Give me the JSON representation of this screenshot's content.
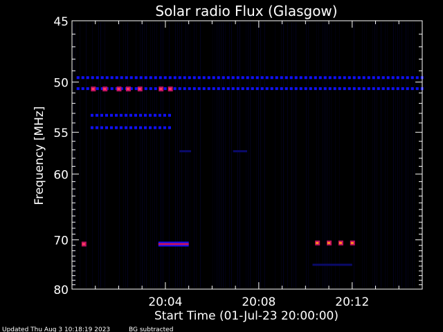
{
  "chart_data": {
    "type": "heatmap",
    "title": "Solar radio Flux (Glasgow)",
    "xlabel": "Start Time (01-Jul-23 20:00:00)",
    "ylabel": "Frequency [MHz]",
    "x_unit": "minutes",
    "xlim": [
      0,
      15
    ],
    "ylim": [
      80,
      45
    ],
    "y_scale": "reciprocal",
    "x_ticks": [
      {
        "value": 4,
        "label": "20:04"
      },
      {
        "value": 8,
        "label": "20:08"
      },
      {
        "value": 12,
        "label": "20:12"
      }
    ],
    "y_ticks": [
      {
        "value": 45,
        "label": "45"
      },
      {
        "value": 50,
        "label": "50"
      },
      {
        "value": 55,
        "label": "55"
      },
      {
        "value": 60,
        "label": "60"
      },
      {
        "value": 70,
        "label": "70"
      },
      {
        "value": 80,
        "label": "80"
      }
    ],
    "colors": {
      "background": "#000000",
      "axes": "#ffffff",
      "low": "#0a0a6a",
      "mid": "#1010ff",
      "high": "#c01060",
      "peak": "#ff8c1a"
    },
    "bands": [
      {
        "freq": 49.6,
        "t_start": 0.2,
        "t_end": 15,
        "intensity": "mid",
        "pattern": "dashed"
      },
      {
        "freq": 50.6,
        "t_start": 0.2,
        "t_end": 15,
        "intensity": "mid",
        "pattern": "dashed"
      },
      {
        "freq": 53.2,
        "t_start": 0.8,
        "t_end": 4.2,
        "intensity": "mid",
        "pattern": "dashed"
      },
      {
        "freq": 54.5,
        "t_start": 0.8,
        "t_end": 4.2,
        "intensity": "mid",
        "pattern": "dashed"
      },
      {
        "freq": 57.2,
        "t_start": 6.9,
        "t_end": 7.5,
        "intensity": "low",
        "pattern": "solid"
      },
      {
        "freq": 57.2,
        "t_start": 4.6,
        "t_end": 5.1,
        "intensity": "low",
        "pattern": "solid"
      },
      {
        "freq": 74.8,
        "t_start": 10.3,
        "t_end": 12.0,
        "intensity": "low",
        "pattern": "solid"
      }
    ],
    "bursts": [
      {
        "time": 0.9,
        "freq": 50.6,
        "intensity": "high"
      },
      {
        "time": 1.4,
        "freq": 50.6,
        "intensity": "high"
      },
      {
        "time": 2.0,
        "freq": 50.6,
        "intensity": "high"
      },
      {
        "time": 2.4,
        "freq": 50.6,
        "intensity": "high"
      },
      {
        "time": 2.9,
        "freq": 50.6,
        "intensity": "high"
      },
      {
        "time": 3.8,
        "freq": 50.6,
        "intensity": "high"
      },
      {
        "time": 4.2,
        "freq": 50.6,
        "intensity": "high"
      },
      {
        "time": 0.5,
        "freq": 70.7,
        "intensity": "high"
      },
      {
        "time": 3.7,
        "freq": 70.7,
        "t_end": 5.0,
        "intensity": "high"
      },
      {
        "time": 10.5,
        "freq": 70.5,
        "intensity": "peak"
      },
      {
        "time": 11.0,
        "freq": 70.5,
        "intensity": "peak"
      },
      {
        "time": 11.5,
        "freq": 70.5,
        "intensity": "peak"
      },
      {
        "time": 12.0,
        "freq": 70.5,
        "intensity": "peak"
      }
    ]
  },
  "footer": {
    "updated": "Updated Thu Aug  3 10:18:19 2023",
    "note": "BG subtracted"
  }
}
